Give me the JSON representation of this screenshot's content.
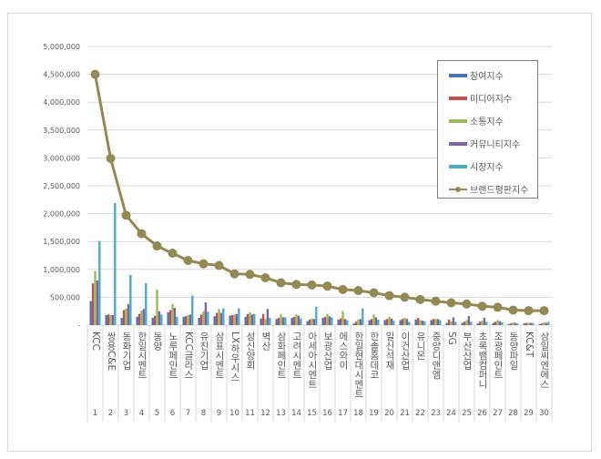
{
  "chart_data": {
    "type": "bar",
    "title": "",
    "xlabel": "",
    "ylabel": "",
    "ylim": [
      0,
      5000000
    ],
    "yticks": [
      "-",
      "500,000",
      "1,000,000",
      "1,500,000",
      "2,000,000",
      "2,500,000",
      "3,000,000",
      "3,500,000",
      "4,000,000",
      "4,500,000",
      "5,000,000"
    ],
    "grid": true,
    "legend_position": "top-right",
    "ranks": [
      1,
      2,
      3,
      4,
      5,
      6,
      7,
      8,
      9,
      10,
      11,
      12,
      13,
      14,
      15,
      16,
      17,
      18,
      19,
      20,
      21,
      22,
      23,
      24,
      25,
      26,
      27,
      28,
      29,
      30
    ],
    "categories": [
      "KCC",
      "쌍용C&E",
      "동화기업",
      "한일시멘트",
      "동양",
      "노루페인트",
      "KCC글라스",
      "유진기업",
      "삼표시멘트",
      "LX하우시스",
      "성신양회",
      "벽산",
      "삼화페인트",
      "고려시멘트",
      "아세아시멘트",
      "보광산업",
      "에스와이",
      "한일현대시멘트",
      "한솔홈데코",
      "일신석재",
      "이건산업",
      "유니온",
      "중앙디앤엠",
      "SG",
      "부산산업",
      "초록뱀컴퍼니",
      "조광페인트",
      "동양파일",
      "KC&T",
      "삼일씨엔에스"
    ],
    "series": [
      {
        "name": "참여지수",
        "kind": "bar",
        "color": "#4472c4",
        "values": [
          430000,
          180000,
          130000,
          150000,
          130000,
          230000,
          150000,
          130000,
          160000,
          170000,
          150000,
          120000,
          110000,
          130000,
          70000,
          130000,
          100000,
          30000,
          90000,
          90000,
          90000,
          100000,
          90000,
          40000,
          40000,
          30000,
          40000,
          20000,
          30000,
          20000
        ]
      },
      {
        "name": "미디어지수",
        "kind": "bar",
        "color": "#c0504d",
        "values": [
          750000,
          190000,
          270000,
          200000,
          170000,
          270000,
          160000,
          190000,
          220000,
          180000,
          200000,
          200000,
          130000,
          150000,
          100000,
          150000,
          120000,
          60000,
          110000,
          110000,
          110000,
          130000,
          110000,
          100000,
          60000,
          60000,
          60000,
          30000,
          40000,
          30000
        ]
      },
      {
        "name": "소통지수",
        "kind": "bar",
        "color": "#9bbb59",
        "values": [
          970000,
          180000,
          300000,
          260000,
          640000,
          380000,
          180000,
          250000,
          290000,
          190000,
          230000,
          110000,
          200000,
          190000,
          120000,
          200000,
          250000,
          100000,
          190000,
          150000,
          130000,
          90000,
          110000,
          70000,
          90000,
          80000,
          90000,
          50000,
          40000,
          50000
        ]
      },
      {
        "name": "커뮤니티지수",
        "kind": "bar",
        "color": "#8064a2",
        "values": [
          800000,
          180000,
          380000,
          290000,
          250000,
          310000,
          190000,
          410000,
          220000,
          200000,
          190000,
          290000,
          140000,
          170000,
          110000,
          160000,
          110000,
          110000,
          140000,
          120000,
          110000,
          80000,
          110000,
          140000,
          160000,
          130000,
          70000,
          40000,
          40000,
          40000
        ]
      },
      {
        "name": "시장지수",
        "kind": "bar",
        "color": "#4bacc6",
        "values": [
          1510000,
          2190000,
          900000,
          750000,
          190000,
          150000,
          530000,
          240000,
          300000,
          300000,
          200000,
          130000,
          140000,
          120000,
          330000,
          140000,
          90000,
          300000,
          100000,
          80000,
          60000,
          70000,
          90000,
          60000,
          60000,
          60000,
          50000,
          30000,
          40000,
          60000
        ]
      },
      {
        "name": "브랜드평판지수",
        "kind": "line",
        "color": "#938953",
        "values": [
          4500000,
          2990000,
          1970000,
          1640000,
          1420000,
          1290000,
          1160000,
          1100000,
          1070000,
          920000,
          910000,
          850000,
          760000,
          730000,
          720000,
          700000,
          640000,
          620000,
          580000,
          530000,
          500000,
          460000,
          430000,
          400000,
          380000,
          340000,
          320000,
          270000,
          260000,
          260000
        ]
      }
    ]
  }
}
